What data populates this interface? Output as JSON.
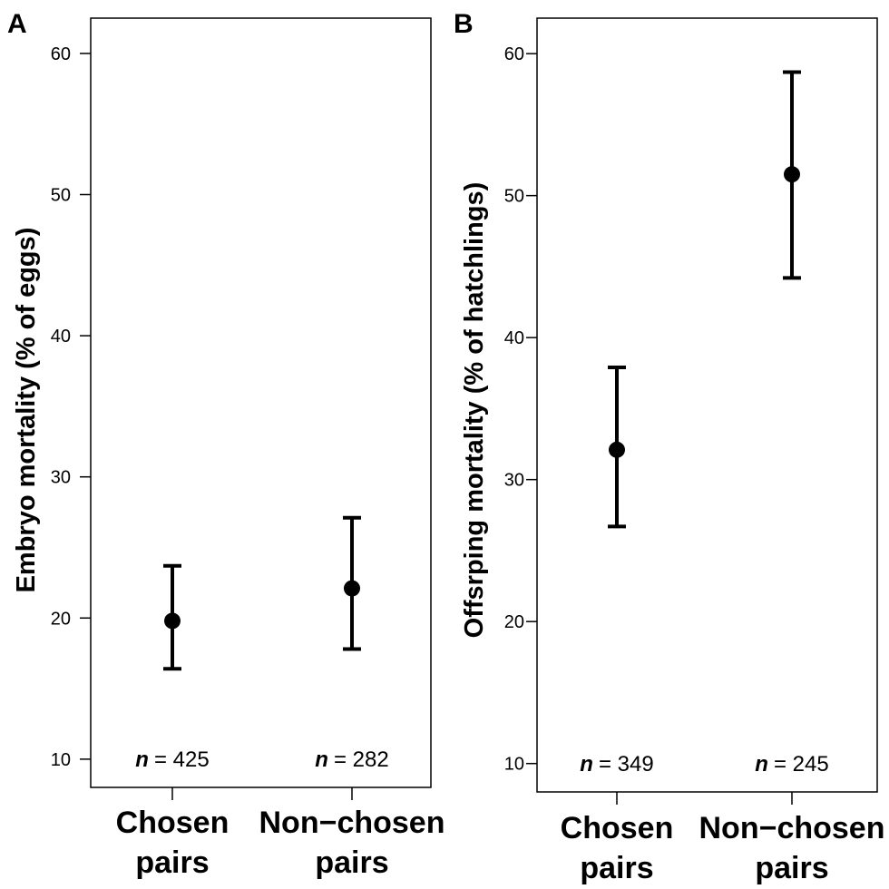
{
  "chart_data": [
    {
      "type": "scatter",
      "panel": "A",
      "ylabel": "Embryo mortality (% of eggs)",
      "xlabel": "",
      "categories": [
        "Chosen pairs",
        "Non−chosen pairs"
      ],
      "category_lines": [
        [
          "Chosen",
          "pairs"
        ],
        [
          "Non−chosen",
          "pairs"
        ]
      ],
      "values": [
        19.8,
        22.1
      ],
      "error_low": [
        16.4,
        17.8
      ],
      "error_high": [
        23.7,
        27.1
      ],
      "n_prefix": "n",
      "n_values": [
        "= 425",
        "= 282"
      ],
      "ylim": [
        8.0,
        62.5
      ],
      "yticks": [
        10,
        20,
        30,
        40,
        50,
        60
      ],
      "grid": false,
      "legend": "none"
    },
    {
      "type": "scatter",
      "panel": "B",
      "ylabel": "Offsrping mortality (% of hatchlings)",
      "xlabel": "",
      "categories": [
        "Chosen pairs",
        "Non−chosen pairs"
      ],
      "category_lines": [
        [
          "Chosen",
          "pairs"
        ],
        [
          "Non−chosen",
          "pairs"
        ]
      ],
      "values": [
        32.1,
        51.5
      ],
      "error_low": [
        26.7,
        44.2
      ],
      "error_high": [
        37.9,
        58.7
      ],
      "n_prefix": "n",
      "n_values": [
        "= 349",
        "= 245"
      ],
      "ylim": [
        8.0,
        62.5
      ],
      "yticks": [
        10,
        20,
        30,
        40,
        50,
        60
      ],
      "grid": false,
      "legend": "none"
    }
  ]
}
